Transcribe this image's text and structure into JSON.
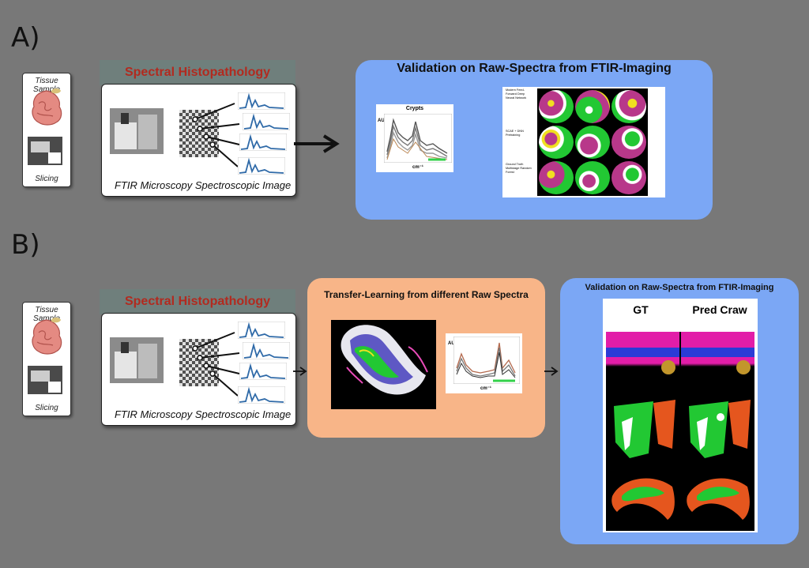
{
  "section_a": {
    "label": "A)",
    "tissue_card": {
      "top_label": "Tissue Sample",
      "bottom_label": "Slicing"
    },
    "spectral_header": "Spectral Histopathology",
    "ftir_caption": "FTIR Microscopy Spectroscopic Image",
    "validation_title": "Validation on Raw-Spectra from FTIR-Imaging",
    "chart_title": "Crypts",
    "chart_ylabel": "AU",
    "chart_xlabel": "cm⁻¹",
    "row_labels": [
      "Modern Feed-Forward Deep Neural Network",
      "SCAE + DNN Pretraining",
      "Ground Truth Multistage Random Forest"
    ]
  },
  "section_b": {
    "label": "B)",
    "tissue_card": {
      "top_label": "Tissue Sample",
      "bottom_label": "Slicing"
    },
    "spectral_header": "Spectral Histopathology",
    "ftir_caption": "FTIR Microscopy Spectroscopic Image",
    "transfer_title": "Transfer-Learning from different Raw Spectra",
    "chart_ylabel": "AU",
    "chart_xlabel": "cm⁻¹",
    "validation_title": "Validation on Raw-Spectra from FTIR-Imaging",
    "col_gt": "GT",
    "col_pred": "Pred Craw"
  },
  "colors": {
    "background": "#787878",
    "panel_blue": "#7ba7f5",
    "panel_orange": "#f8b588",
    "header_red": "#b22a1f",
    "spectrum_blue": "#2f6aa8"
  },
  "icons": [
    "arrow-right-icon",
    "spectrum-icon",
    "tissue-icon",
    "microscope-icon"
  ]
}
